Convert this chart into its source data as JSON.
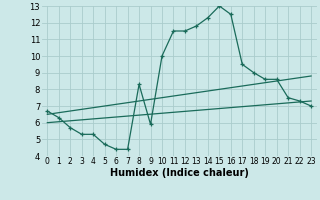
{
  "xlabel": "Humidex (Indice chaleur)",
  "bg_color": "#cce8e8",
  "grid_color": "#aacccc",
  "line_color": "#1a6b5a",
  "xlim": [
    -0.5,
    23.5
  ],
  "ylim": [
    4,
    13
  ],
  "xticks": [
    0,
    1,
    2,
    3,
    4,
    5,
    6,
    7,
    8,
    9,
    10,
    11,
    12,
    13,
    14,
    15,
    16,
    17,
    18,
    19,
    20,
    21,
    22,
    23
  ],
  "yticks": [
    4,
    5,
    6,
    7,
    8,
    9,
    10,
    11,
    12,
    13
  ],
  "line1_x": [
    0,
    1,
    2,
    3,
    4,
    5,
    6,
    7,
    8,
    9,
    10,
    11,
    12,
    13,
    14,
    15,
    16,
    17,
    18,
    19,
    20,
    21,
    22,
    23
  ],
  "line1_y": [
    6.7,
    6.3,
    5.7,
    5.3,
    5.3,
    4.7,
    4.4,
    4.4,
    8.3,
    5.9,
    10.0,
    11.5,
    11.5,
    11.8,
    12.3,
    13.0,
    12.5,
    9.5,
    9.0,
    8.6,
    8.6,
    7.5,
    7.3,
    7.0
  ],
  "line2_x": [
    0,
    23
  ],
  "line2_y": [
    6.5,
    8.8
  ],
  "line3_x": [
    0,
    23
  ],
  "line3_y": [
    6.0,
    7.3
  ]
}
